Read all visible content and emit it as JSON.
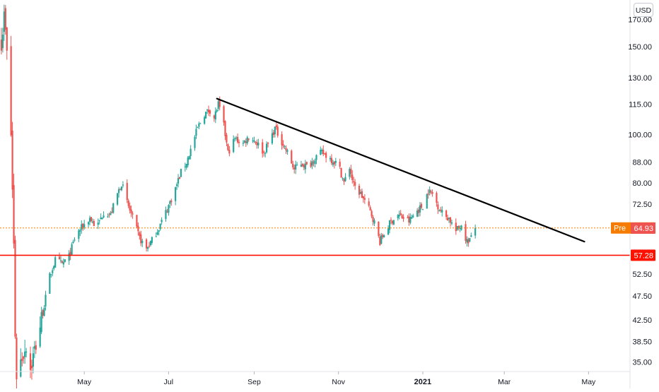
{
  "header": {
    "currency": "USD"
  },
  "colors": {
    "up": "#26a69a",
    "down": "#ef5350",
    "pre_market": "#f57c00",
    "last_price": "#ef5350",
    "support": "#ff1100",
    "trendline": "#000000",
    "axis_text": "#131722"
  },
  "chart_data": {
    "type": "candlestick",
    "title": "",
    "xlabel": "",
    "ylabel": "",
    "y_scale": "log",
    "ylim": [
      33.5,
      186
    ],
    "xlim": [
      "2020-03-01",
      "2021-05-31"
    ],
    "grid": false,
    "y_ticks": [
      "35.00",
      "38.50",
      "42.50",
      "47.50",
      "52.50",
      "57.28",
      "64.93",
      "72.50",
      "80.00",
      "88.00",
      "100.00",
      "115.00",
      "130.00",
      "150.00",
      "170.00"
    ],
    "x_ticks": [
      {
        "date": "2020-05-01",
        "label": "May",
        "bold": false
      },
      {
        "date": "2020-07-01",
        "label": "Jul",
        "bold": false
      },
      {
        "date": "2020-09-01",
        "label": "Sep",
        "bold": false
      },
      {
        "date": "2020-11-01",
        "label": "Nov",
        "bold": false
      },
      {
        "date": "2021-01-01",
        "label": "2021",
        "bold": true
      },
      {
        "date": "2021-03-01",
        "label": "Mar",
        "bold": false
      },
      {
        "date": "2021-05-01",
        "label": "May",
        "bold": false
      }
    ],
    "trendline": {
      "start": {
        "date": "2020-08-05",
        "value": 118
      },
      "end": {
        "date": "2021-04-28",
        "value": 61
      }
    },
    "horizontal_lines": [
      {
        "name": "support",
        "value": 57.28,
        "style": "solid"
      },
      {
        "name": "pre-market",
        "value": 64.98,
        "style": "dotted"
      }
    ],
    "price_tags": [
      {
        "label": "Pre",
        "value": "64.98",
        "kind": "pre_market"
      },
      {
        "label": "",
        "value": "64.93",
        "kind": "last_price"
      },
      {
        "label": "",
        "value": "57.28",
        "kind": "support"
      }
    ],
    "anchors": [
      [
        "2020-03-02",
        155
      ],
      [
        "2020-03-04",
        172
      ],
      [
        "2020-03-05",
        160
      ],
      [
        "2020-03-07",
        130
      ],
      [
        "2020-03-09",
        100
      ],
      [
        "2020-03-11",
        60
      ],
      [
        "2020-03-12",
        40
      ],
      [
        "2020-03-13",
        33
      ],
      [
        "2020-03-17",
        36
      ],
      [
        "2020-03-20",
        38
      ],
      [
        "2020-03-23",
        34
      ],
      [
        "2020-03-27",
        38
      ],
      [
        "2020-04-01",
        44
      ],
      [
        "2020-04-06",
        52
      ],
      [
        "2020-04-10",
        56
      ],
      [
        "2020-04-15",
        55
      ],
      [
        "2020-04-20",
        57
      ],
      [
        "2020-04-25",
        63
      ],
      [
        "2020-05-01",
        66
      ],
      [
        "2020-05-05",
        68
      ],
      [
        "2020-05-10",
        65
      ],
      [
        "2020-05-15",
        70
      ],
      [
        "2020-05-20",
        69
      ],
      [
        "2020-05-25",
        76
      ],
      [
        "2020-05-28",
        80
      ],
      [
        "2020-06-01",
        73
      ],
      [
        "2020-06-05",
        68
      ],
      [
        "2020-06-10",
        62
      ],
      [
        "2020-06-15",
        59
      ],
      [
        "2020-06-20",
        62
      ],
      [
        "2020-06-25",
        66
      ],
      [
        "2020-07-01",
        72
      ],
      [
        "2020-07-06",
        78
      ],
      [
        "2020-07-10",
        84
      ],
      [
        "2020-07-14",
        88
      ],
      [
        "2020-07-18",
        95
      ],
      [
        "2020-07-22",
        103
      ],
      [
        "2020-07-27",
        110
      ],
      [
        "2020-07-31",
        112
      ],
      [
        "2020-08-03",
        108
      ],
      [
        "2020-08-06",
        115
      ],
      [
        "2020-08-10",
        104
      ],
      [
        "2020-08-13",
        92
      ],
      [
        "2020-08-18",
        98
      ],
      [
        "2020-08-24",
        96
      ],
      [
        "2020-08-28",
        99
      ],
      [
        "2020-09-02",
        97
      ],
      [
        "2020-09-08",
        92
      ],
      [
        "2020-09-12",
        97
      ],
      [
        "2020-09-16",
        103
      ],
      [
        "2020-09-20",
        98
      ],
      [
        "2020-09-25",
        92
      ],
      [
        "2020-09-30",
        85
      ],
      [
        "2020-10-04",
        88
      ],
      [
        "2020-10-10",
        86
      ],
      [
        "2020-10-15",
        90
      ],
      [
        "2020-10-20",
        92
      ],
      [
        "2020-10-25",
        90
      ],
      [
        "2020-11-01",
        87
      ],
      [
        "2020-11-05",
        80
      ],
      [
        "2020-11-09",
        86
      ],
      [
        "2020-11-12",
        79
      ],
      [
        "2020-11-17",
        76
      ],
      [
        "2020-11-22",
        72
      ],
      [
        "2020-11-26",
        68
      ],
      [
        "2020-12-01",
        61
      ],
      [
        "2020-12-05",
        64
      ],
      [
        "2020-12-09",
        67
      ],
      [
        "2020-12-14",
        69
      ],
      [
        "2020-12-18",
        68
      ],
      [
        "2020-12-22",
        67
      ],
      [
        "2020-12-27",
        70
      ],
      [
        "2021-01-01",
        72
      ],
      [
        "2021-01-05",
        77
      ],
      [
        "2021-01-08",
        76
      ],
      [
        "2021-01-12",
        72
      ],
      [
        "2021-01-16",
        69
      ],
      [
        "2021-01-20",
        68
      ],
      [
        "2021-01-25",
        64
      ],
      [
        "2021-01-29",
        66
      ],
      [
        "2021-02-02",
        61
      ],
      [
        "2021-02-05",
        62
      ],
      [
        "2021-02-08",
        65
      ]
    ]
  }
}
